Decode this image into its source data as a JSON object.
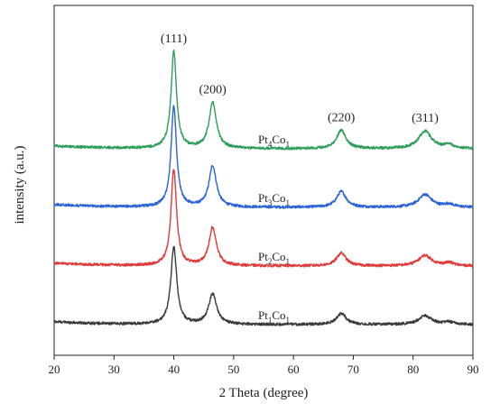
{
  "chart_data": {
    "type": "line",
    "xlabel": "2 Theta (degree)",
    "ylabel": "intensity (a.u.)",
    "xlim": [
      20,
      90
    ],
    "xticks": [
      20,
      30,
      40,
      50,
      60,
      70,
      80,
      90
    ],
    "yticks_shown": false,
    "grid": false,
    "legend": "none",
    "peak_annotations": [
      {
        "label": "(111)",
        "x": 40
      },
      {
        "label": "(200)",
        "x": 46.5
      },
      {
        "label": "(220)",
        "x": 68
      },
      {
        "label": "(311)",
        "x": 82
      }
    ],
    "series": [
      {
        "name": "Pt4Co1",
        "label_main": "Pt",
        "label_sub1": "4",
        "label_mid": "Co",
        "label_sub2": "1",
        "color": "#2e9e5b",
        "offset": 3.0,
        "peaks": [
          {
            "x": 40.0,
            "height": 1.65,
            "width": 0.55
          },
          {
            "x": 46.5,
            "height": 0.78,
            "width": 0.75
          },
          {
            "x": 68.0,
            "height": 0.31,
            "width": 0.95
          },
          {
            "x": 82.0,
            "height": 0.3,
            "width": 1.3
          },
          {
            "x": 86.0,
            "height": 0.06,
            "width": 1.0
          }
        ]
      },
      {
        "name": "Pt3Co1",
        "label_main": "Pt",
        "label_sub1": "3",
        "label_mid": "Co",
        "label_sub2": "1",
        "color": "#2b63d6",
        "offset": 2.0,
        "peaks": [
          {
            "x": 40.0,
            "height": 1.72,
            "width": 0.55
          },
          {
            "x": 46.5,
            "height": 0.7,
            "width": 0.75
          },
          {
            "x": 68.0,
            "height": 0.27,
            "width": 0.95
          },
          {
            "x": 82.0,
            "height": 0.22,
            "width": 1.3
          },
          {
            "x": 86.0,
            "height": 0.05,
            "width": 1.0
          }
        ]
      },
      {
        "name": "Pt2Co1",
        "label_main": "Pt",
        "label_sub1": "2",
        "label_mid": "Co",
        "label_sub2": "1",
        "color": "#e03a3a",
        "offset": 1.0,
        "peaks": [
          {
            "x": 40.0,
            "height": 1.65,
            "width": 0.55
          },
          {
            "x": 46.5,
            "height": 0.65,
            "width": 0.75
          },
          {
            "x": 68.0,
            "height": 0.22,
            "width": 0.95
          },
          {
            "x": 82.0,
            "height": 0.18,
            "width": 1.3
          },
          {
            "x": 86.0,
            "height": 0.05,
            "width": 1.0
          }
        ]
      },
      {
        "name": "Pt1Co1",
        "label_main": "Pt",
        "label_sub1": "1",
        "label_mid": "Co",
        "label_sub2": "1",
        "color": "#3a3a3a",
        "offset": 0.0,
        "peaks": [
          {
            "x": 40.0,
            "height": 1.32,
            "width": 0.6
          },
          {
            "x": 46.5,
            "height": 0.52,
            "width": 0.8
          },
          {
            "x": 68.0,
            "height": 0.19,
            "width": 0.95
          },
          {
            "x": 82.0,
            "height": 0.15,
            "width": 1.3
          },
          {
            "x": 86.0,
            "height": 0.04,
            "width": 1.0
          }
        ]
      }
    ]
  }
}
